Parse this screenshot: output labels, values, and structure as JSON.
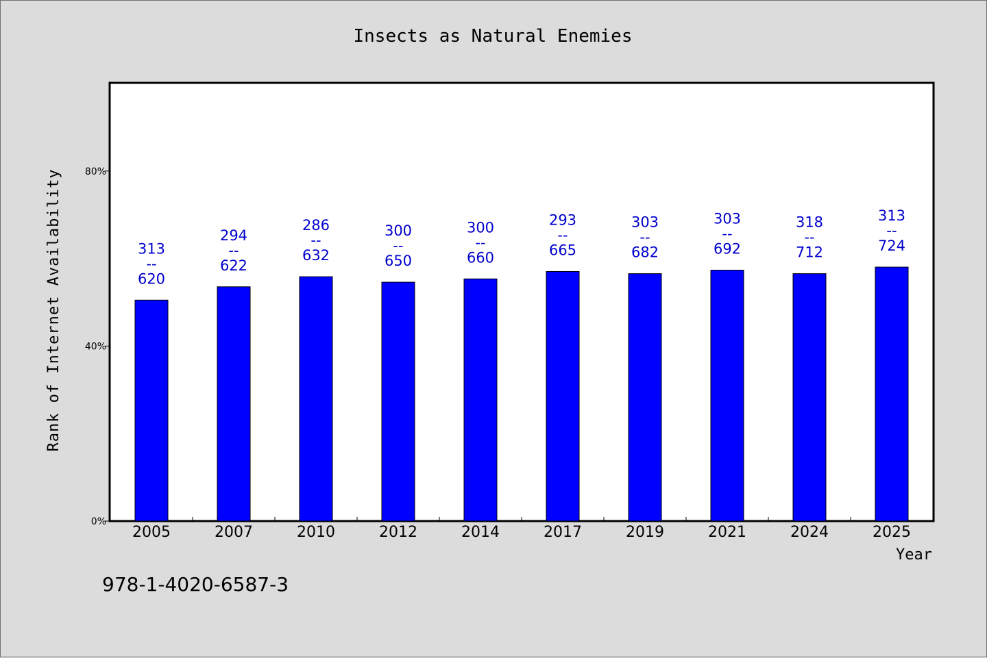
{
  "chart_data": {
    "type": "bar",
    "title": "Insects as Natural Enemies",
    "xlabel": "Year",
    "ylabel": "Rank of Internet Availability",
    "categories": [
      "2005",
      "2007",
      "2010",
      "2012",
      "2014",
      "2017",
      "2019",
      "2021",
      "2024",
      "2025"
    ],
    "values": [
      0.505,
      0.5355,
      0.5585,
      0.546,
      0.5535,
      0.5705,
      0.5655,
      0.5735,
      0.5655,
      0.5805
    ],
    "data_labels": [
      [
        "313",
        "--",
        "620"
      ],
      [
        "294",
        "--",
        "622"
      ],
      [
        "286",
        "--",
        "632"
      ],
      [
        "300",
        "--",
        "650"
      ],
      [
        "300",
        "--",
        "660"
      ],
      [
        "293",
        "--",
        "665"
      ],
      [
        "303",
        "--",
        "682"
      ],
      [
        "303",
        "--",
        "692"
      ],
      [
        "318",
        "--",
        "712"
      ],
      [
        "313",
        "--",
        "724"
      ]
    ],
    "yticks": [
      0,
      0.4,
      0.8
    ],
    "ytick_labels": [
      "0%",
      "40%",
      "80%"
    ],
    "ylim": [
      0,
      1.0
    ],
    "grid": false,
    "legend": "none",
    "bar_color": "#0000ff",
    "label_color": "#0000cc",
    "background_color": "#dcdcdc",
    "plot_background": "#ffffff"
  },
  "footnote": "978-1-4020-6587-3"
}
